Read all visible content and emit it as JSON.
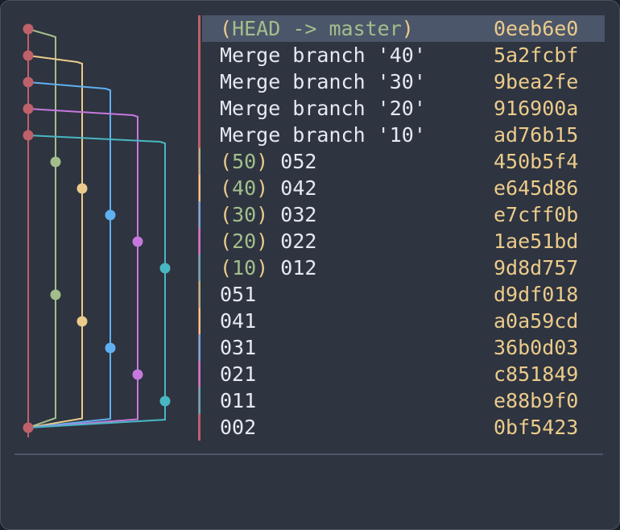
{
  "colors": {
    "background": "#2e3440",
    "selection": "#4c566a",
    "text": "#e5e9f0",
    "hash": "#ebcb8b",
    "ref_name": "#a3be8c",
    "ref_paren": "#ebcb8b",
    "lanes": [
      "#bf616a",
      "#a3be8c",
      "#ebcb8b",
      "#5fb0f0",
      "#c678dd",
      "#48b7c3"
    ]
  },
  "commits": [
    {
      "ref_name": "HEAD -> master",
      "message": "",
      "hash": "0eeb6e0",
      "lane": 0,
      "selected": true
    },
    {
      "ref_name": "",
      "message": "Merge branch '40'",
      "hash": "5a2fcbf",
      "lane": 0
    },
    {
      "ref_name": "",
      "message": "Merge branch '30'",
      "hash": "9bea2fe",
      "lane": 0
    },
    {
      "ref_name": "",
      "message": "Merge branch '20'",
      "hash": "916900a",
      "lane": 0
    },
    {
      "ref_name": "",
      "message": "Merge branch '10'",
      "hash": "ad76b15",
      "lane": 0
    },
    {
      "ref_name": "50",
      "message": "052",
      "hash": "450b5f4",
      "lane": 1
    },
    {
      "ref_name": "40",
      "message": "042",
      "hash": "e645d86",
      "lane": 2
    },
    {
      "ref_name": "30",
      "message": "032",
      "hash": "e7cff0b",
      "lane": 3
    },
    {
      "ref_name": "20",
      "message": "022",
      "hash": "1ae51bd",
      "lane": 4
    },
    {
      "ref_name": "10",
      "message": "012",
      "hash": "9d8d757",
      "lane": 5
    },
    {
      "ref_name": "",
      "message": "051",
      "hash": "d9df018",
      "lane": 1
    },
    {
      "ref_name": "",
      "message": "041",
      "hash": "a0a59cd",
      "lane": 2
    },
    {
      "ref_name": "",
      "message": "031",
      "hash": "36b0d03",
      "lane": 3
    },
    {
      "ref_name": "",
      "message": "021",
      "hash": "c851849",
      "lane": 4
    },
    {
      "ref_name": "",
      "message": "011",
      "hash": "e88b9f0",
      "lane": 5
    },
    {
      "ref_name": "",
      "message": "002",
      "hash": "0bf5423",
      "lane": 0
    }
  ]
}
